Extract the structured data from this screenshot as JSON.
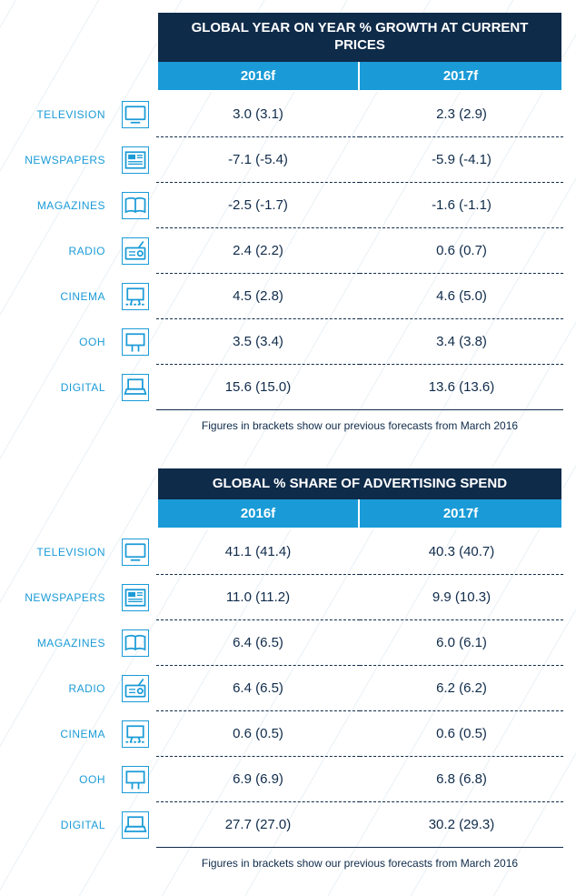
{
  "colors": {
    "navy": "#0f2b4a",
    "accent": "#1a9bd7",
    "text": "#0f2b4a",
    "label_text": "#1a9bd7",
    "white": "#ffffff"
  },
  "typography": {
    "title_fontsize": 15,
    "year_fontsize": 15,
    "label_fontsize": 12,
    "value_fontsize": 15,
    "footnote_fontsize": 12
  },
  "table1": {
    "title": "GLOBAL YEAR ON YEAR % GROWTH AT CURRENT PRICES",
    "years": [
      "2016f",
      "2017f"
    ],
    "rows": [
      {
        "label": "TELEVISION",
        "icon": "tv",
        "values": [
          "3.0 (3.1)",
          "2.3 (2.9)"
        ]
      },
      {
        "label": "NEWSPAPERS",
        "icon": "newspaper",
        "values": [
          "-7.1 (-5.4)",
          "-5.9 (-4.1)"
        ]
      },
      {
        "label": "MAGAZINES",
        "icon": "book",
        "values": [
          "-2.5 (-1.7)",
          "-1.6 (-1.1)"
        ]
      },
      {
        "label": "RADIO",
        "icon": "radio",
        "values": [
          "2.4 (2.2)",
          "0.6 (0.7)"
        ]
      },
      {
        "label": "CINEMA",
        "icon": "cinema",
        "values": [
          "4.5 (2.8)",
          "4.6 (5.0)"
        ]
      },
      {
        "label": "OOH",
        "icon": "billboard",
        "values": [
          "3.5 (3.4)",
          "3.4 (3.8)"
        ]
      },
      {
        "label": "DIGITAL",
        "icon": "laptop",
        "values": [
          "15.6 (15.0)",
          "13.6 (13.6)"
        ]
      }
    ],
    "footnote": "Figures in brackets show our previous forecasts from March 2016"
  },
  "table2": {
    "title": "GLOBAL % SHARE OF ADVERTISING SPEND",
    "years": [
      "2016f",
      "2017f"
    ],
    "rows": [
      {
        "label": "TELEVISION",
        "icon": "tv",
        "values": [
          "41.1 (41.4)",
          "40.3 (40.7)"
        ]
      },
      {
        "label": "NEWSPAPERS",
        "icon": "newspaper",
        "values": [
          "11.0 (11.2)",
          "9.9 (10.3)"
        ]
      },
      {
        "label": "MAGAZINES",
        "icon": "book",
        "values": [
          "6.4 (6.5)",
          "6.0 (6.1)"
        ]
      },
      {
        "label": "RADIO",
        "icon": "radio",
        "values": [
          "6.4 (6.5)",
          "6.2 (6.2)"
        ]
      },
      {
        "label": "CINEMA",
        "icon": "cinema",
        "values": [
          "0.6 (0.5)",
          "0.6 (0.5)"
        ]
      },
      {
        "label": "OOH",
        "icon": "billboard",
        "values": [
          "6.9 (6.9)",
          "6.8 (6.8)"
        ]
      },
      {
        "label": "DIGITAL",
        "icon": "laptop",
        "values": [
          "27.7 (27.0)",
          "30.2 (29.3)"
        ]
      }
    ],
    "footnote": "Figures in brackets show our previous forecasts from March 2016"
  }
}
